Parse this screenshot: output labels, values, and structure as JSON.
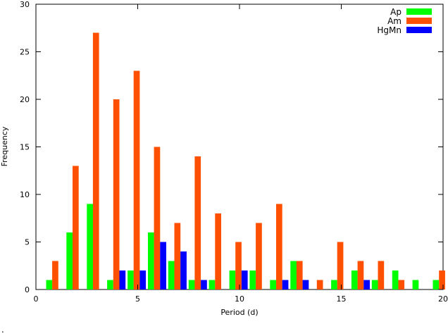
{
  "chart_data": {
    "type": "bar",
    "xlabel": "Period (d)",
    "ylabel": "Frequency",
    "xlim": [
      0,
      20
    ],
    "ylim": [
      0,
      30
    ],
    "xticks": [
      0,
      5,
      10,
      15,
      20
    ],
    "yticks": [
      0,
      5,
      10,
      15,
      20,
      25,
      30
    ],
    "bar_width": 0.3,
    "legend_position": "top-right",
    "series": [
      {
        "name": "Ap",
        "color": "#00ff00",
        "x": [
          0.65,
          1.65,
          2.65,
          3.65,
          4.65,
          5.65,
          6.65,
          7.65,
          8.65,
          9.65,
          10.65,
          11.65,
          12.65,
          14.65,
          15.65,
          16.65,
          17.65,
          18.65,
          19.65
        ],
        "values": [
          1,
          6,
          9,
          1,
          2,
          6,
          3,
          1,
          1,
          2,
          2,
          1,
          3,
          1,
          2,
          1,
          2,
          1,
          1
        ]
      },
      {
        "name": "Am",
        "color": "#ff4f00",
        "x": [
          0.95,
          1.95,
          2.95,
          3.95,
          4.95,
          5.95,
          6.95,
          7.95,
          8.95,
          9.95,
          10.95,
          11.95,
          12.95,
          13.95,
          14.95,
          15.95,
          16.95,
          17.95,
          19.95
        ],
        "values": [
          3,
          13,
          27,
          20,
          23,
          15,
          7,
          14,
          8,
          5,
          7,
          9,
          3,
          1,
          5,
          3,
          3,
          1,
          2
        ]
      },
      {
        "name": "HgMn",
        "color": "#0000ff",
        "x": [
          4.25,
          5.25,
          6.25,
          7.25,
          8.25,
          10.25,
          12.25,
          13.25,
          16.25
        ],
        "values": [
          2,
          2,
          5,
          4,
          1,
          2,
          1,
          1,
          1
        ]
      }
    ]
  },
  "footer_mark": "."
}
